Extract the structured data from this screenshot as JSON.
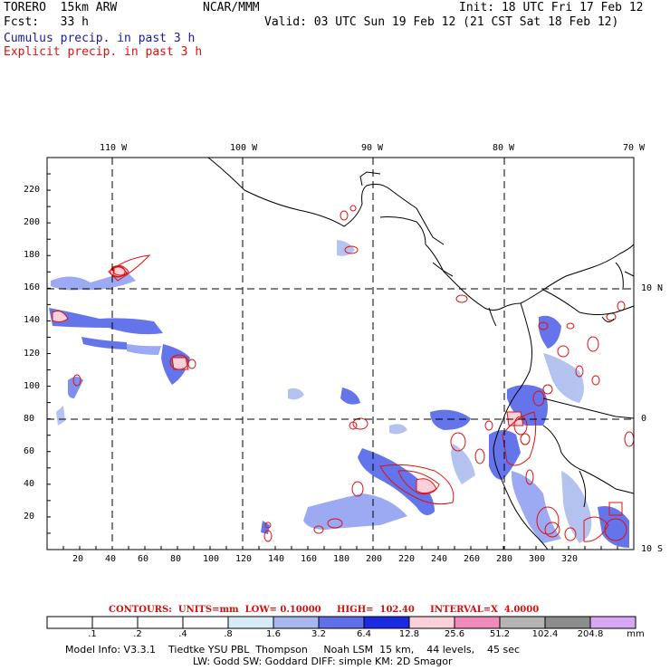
{
  "header": {
    "model": "TORERO  15km ARW",
    "org": "NCAR/MMM",
    "init": "Init: 18 UTC Fri 17 Feb 12",
    "fcst": "Fcst:   33 h",
    "valid": "Valid: 03 UTC Sun 19 Feb 12 (21 CST Sat 18 Feb 12)",
    "cumulus": "Cumulus precip. in past 3 h",
    "explicit": "Explicit precip. in past 3 h"
  },
  "axes": {
    "top_lon": [
      "110 W",
      "100 W",
      "90 W",
      "80 W",
      "70 W"
    ],
    "right_lat": [
      "10 N",
      "0",
      "10 S"
    ],
    "x_ticks": [
      "20",
      "40",
      "60",
      "80",
      "100",
      "120",
      "140",
      "160",
      "180",
      "200",
      "220",
      "240",
      "260",
      "280",
      "300",
      "320"
    ],
    "y_ticks": [
      "220",
      "200",
      "180",
      "160",
      "140",
      "120",
      "100",
      "80",
      "60",
      "40",
      "20"
    ]
  },
  "contours": {
    "text": "CONTOURS:  UNITS=mm  LOW= 0.10000     HIGH=  102.40     INTERVAL=X  4.0000"
  },
  "legend": {
    "labels": [
      ".1",
      ".2",
      ".4",
      ".8",
      "1.6",
      "3.2",
      "6.4",
      "12.8",
      "25.6",
      "51.2",
      "102.4",
      "204.8"
    ],
    "unit": "mm",
    "colors": [
      "#ffffff",
      "#ffffff",
      "#ffffff",
      "#ffffff",
      "#d8ecf8",
      "#a8b8ee",
      "#6070e8",
      "#1a2ae0",
      "#fcd0d8",
      "#f08ab8",
      "#b4b4b4",
      "#8c8c8c",
      "#d8a8f4"
    ]
  },
  "info": {
    "line1": "Model Info: V3.3.1    Tiedtke YSU PBL  Thompson     Noah LSM  15 km,    44 levels,    45 sec",
    "line2": "LW: Godd SW: Goddard DIFF: simple KM: 2D Smagor"
  }
}
